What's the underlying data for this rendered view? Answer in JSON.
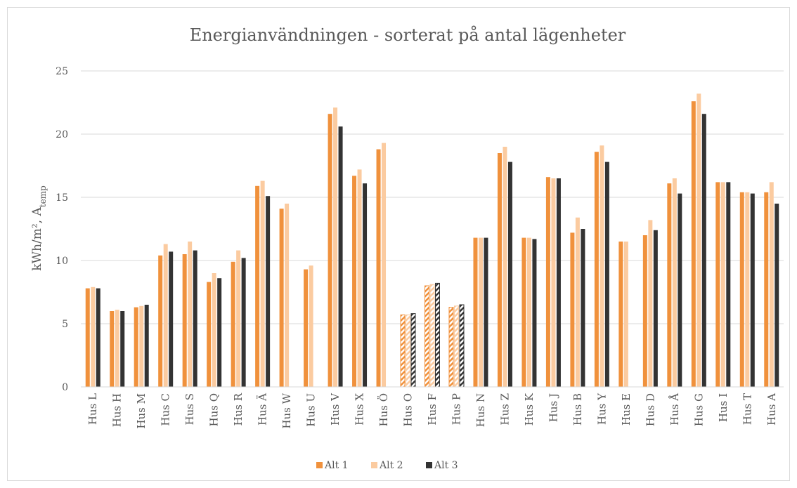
{
  "chart_data": {
    "type": "bar",
    "title": "Energianvändningen - sorterat på antal lägenheter",
    "ylabel": "kWh/m², A",
    "ylabel_sub": "temp",
    "categories": [
      "Hus L",
      "Hus H",
      "Hus M",
      "Hus C",
      "Hus S",
      "Hus Q",
      "Hus R",
      "Hus Ä",
      "Hus W",
      "Hus U",
      "Hus V",
      "Hus X",
      "Hus Ö",
      "Hus O",
      "Hus F",
      "Hus P",
      "Hus N",
      "Hus Z",
      "Hus K",
      "Hus J",
      "Hus B",
      "Hus Y",
      "Hus E",
      "Hus D",
      "Hus Å",
      "Hus G",
      "Hus I",
      "Hus T",
      "Hus A"
    ],
    "series": [
      {
        "name": "Alt 1",
        "color": "#f0913c",
        "values": [
          7.8,
          6.0,
          6.3,
          10.4,
          10.5,
          8.3,
          9.9,
          15.9,
          14.1,
          9.3,
          21.6,
          16.7,
          18.8,
          5.7,
          8.0,
          6.3,
          11.8,
          18.5,
          11.8,
          16.6,
          12.2,
          18.6,
          11.5,
          12.0,
          16.1,
          22.6,
          16.2,
          15.4,
          15.4
        ]
      },
      {
        "name": "Alt 2",
        "color": "#fbcba0",
        "values": [
          7.9,
          6.1,
          6.4,
          11.3,
          11.5,
          9.0,
          10.8,
          16.3,
          14.5,
          9.6,
          22.1,
          17.2,
          19.3,
          5.7,
          8.1,
          6.4,
          11.8,
          19.0,
          11.8,
          16.5,
          13.4,
          19.1,
          11.5,
          13.2,
          16.5,
          23.2,
          16.2,
          15.4,
          16.2
        ]
      },
      {
        "name": "Alt 3",
        "color": "#333333",
        "values": [
          7.8,
          6.0,
          6.5,
          10.7,
          10.8,
          8.6,
          10.2,
          15.1,
          null,
          null,
          20.6,
          16.1,
          null,
          5.8,
          8.2,
          6.5,
          11.8,
          17.8,
          11.7,
          16.5,
          12.5,
          17.8,
          null,
          12.4,
          15.3,
          21.6,
          16.2,
          15.3,
          14.5
        ]
      }
    ],
    "hatched": [
      false,
      false,
      false,
      false,
      false,
      false,
      false,
      false,
      false,
      false,
      false,
      false,
      false,
      true,
      true,
      true,
      false,
      false,
      false,
      false,
      false,
      false,
      false,
      false,
      false,
      false,
      false,
      false,
      false
    ],
    "ylim": [
      0,
      25
    ],
    "yticks": [
      0,
      5,
      10,
      15,
      20,
      25
    ],
    "grid": true,
    "legend": "bottom"
  }
}
